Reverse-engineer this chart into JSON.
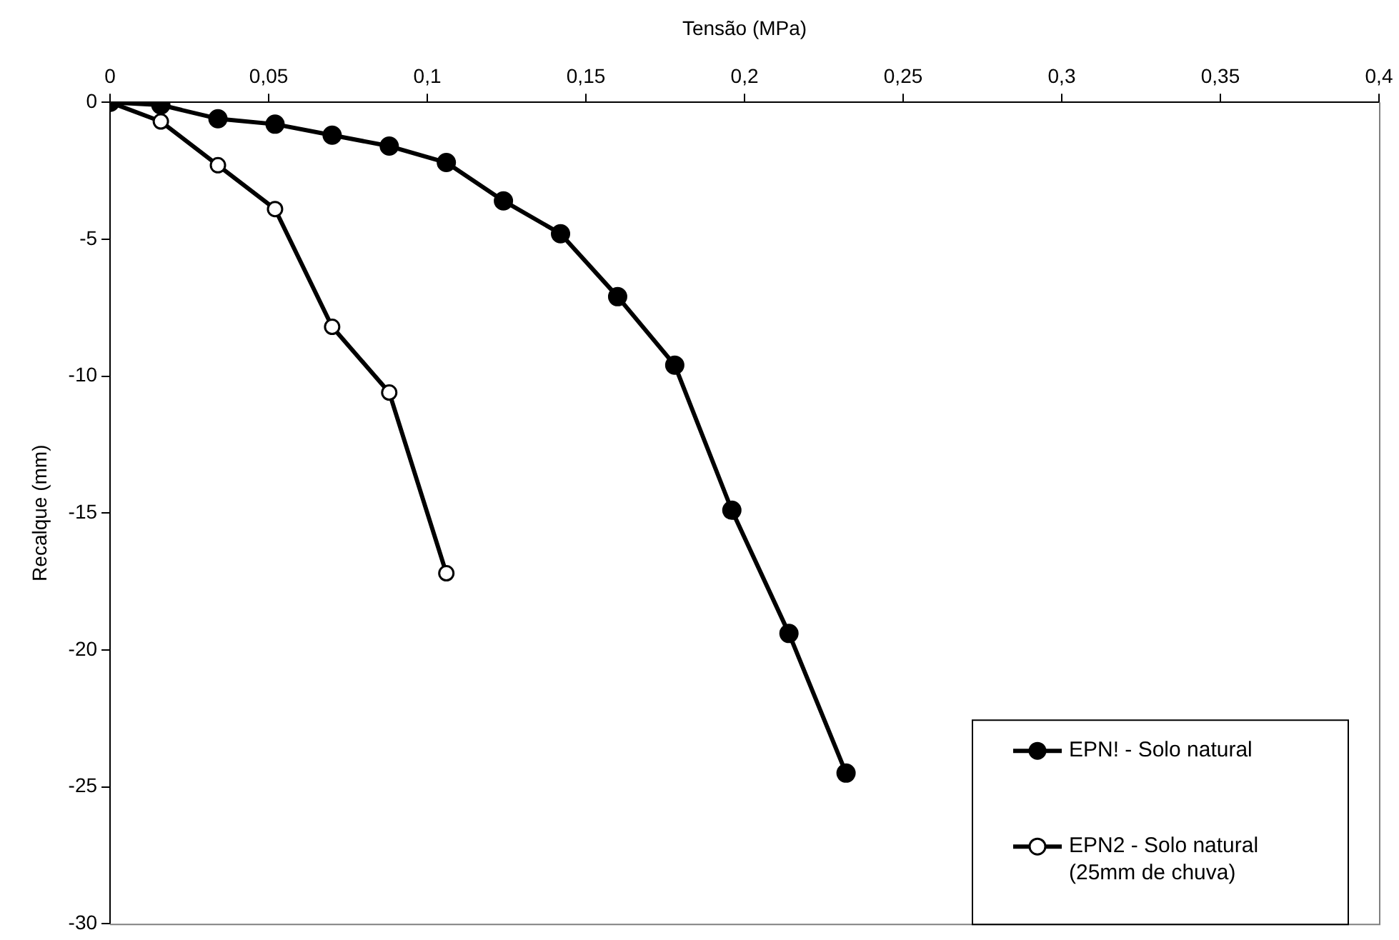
{
  "chart_data": {
    "type": "line",
    "xlabel": "Tensão (MPa)",
    "ylabel": "Recalque (mm)",
    "xlim": [
      0,
      0.4
    ],
    "xticks": [
      0,
      {
        "value": 0.05,
        "label": "0,05"
      },
      {
        "value": 0.1,
        "label": "0,1"
      },
      {
        "value": 0.15,
        "label": "0,15"
      },
      {
        "value": 0.2,
        "label": "0,2"
      },
      {
        "value": 0.25,
        "label": "0,25"
      },
      {
        "value": 0.3,
        "label": "0,3"
      },
      {
        "value": 0.35,
        "label": "0,35"
      },
      {
        "value": 0.4,
        "label": "0,4"
      }
    ],
    "ylim": [
      -30,
      0
    ],
    "yticks": [
      -30,
      -25,
      -20,
      -15,
      -10,
      -5,
      0
    ],
    "grid": false,
    "legend": "bottom right",
    "marker": "circle",
    "line_style": "solid",
    "series": [
      {
        "name": "EPN! - Solo natural",
        "color": "#000000",
        "x": [
          0,
          0.016,
          0.034,
          0.052,
          0.07,
          0.088,
          0.106,
          0.124,
          0.142,
          0.16,
          0.178,
          0.196,
          0.214,
          0.232
        ],
        "values": [
          0,
          -0.1,
          -0.6,
          -0.8,
          -1.2,
          -1.6,
          -2.2,
          -3.6,
          -4.8,
          -7.1,
          -9.6,
          -14.9,
          -19.4,
          -24.5
        ]
      },
      {
        "name": "EPN2 - Solo natural (25mm de chuva)",
        "color": "#000000",
        "x": [
          0,
          0.016,
          0.034,
          0.052,
          0.07,
          0.088,
          0.106
        ],
        "values": [
          0,
          -0.7,
          -2.3,
          -3.9,
          -8.2,
          -10.6,
          -17.2
        ]
      }
    ]
  }
}
